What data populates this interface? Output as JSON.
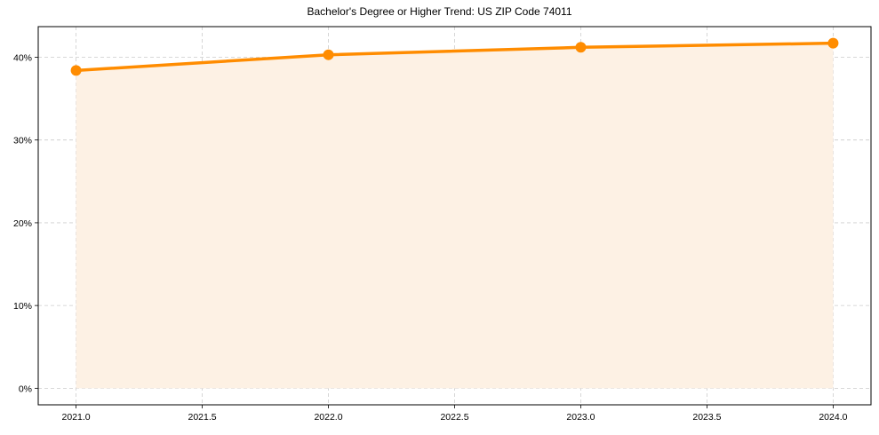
{
  "chart_data": {
    "type": "line",
    "title": "Bachelor's Degree or Higher Trend: US ZIP Code 74011",
    "xlabel": "",
    "ylabel": "",
    "x": [
      2021,
      2022,
      2023,
      2024
    ],
    "series": [
      {
        "name": "Bachelor's Degree or Higher",
        "values": [
          38.4,
          40.3,
          41.2,
          41.7
        ],
        "color": "#ff8c00",
        "fill_color": "#fdf1e4",
        "marker": "circle"
      }
    ],
    "x_ticks": [
      "2021.0",
      "2021.5",
      "2022.0",
      "2022.5",
      "2023.0",
      "2023.5",
      "2024.0"
    ],
    "y_ticks": [
      "0%",
      "10%",
      "20%",
      "30%",
      "40%"
    ],
    "xlim": [
      2020.85,
      2024.15
    ],
    "ylim": [
      -2.0,
      43.7
    ],
    "grid": true,
    "grid_style": "dashed",
    "legend": null,
    "area_fill": true
  }
}
